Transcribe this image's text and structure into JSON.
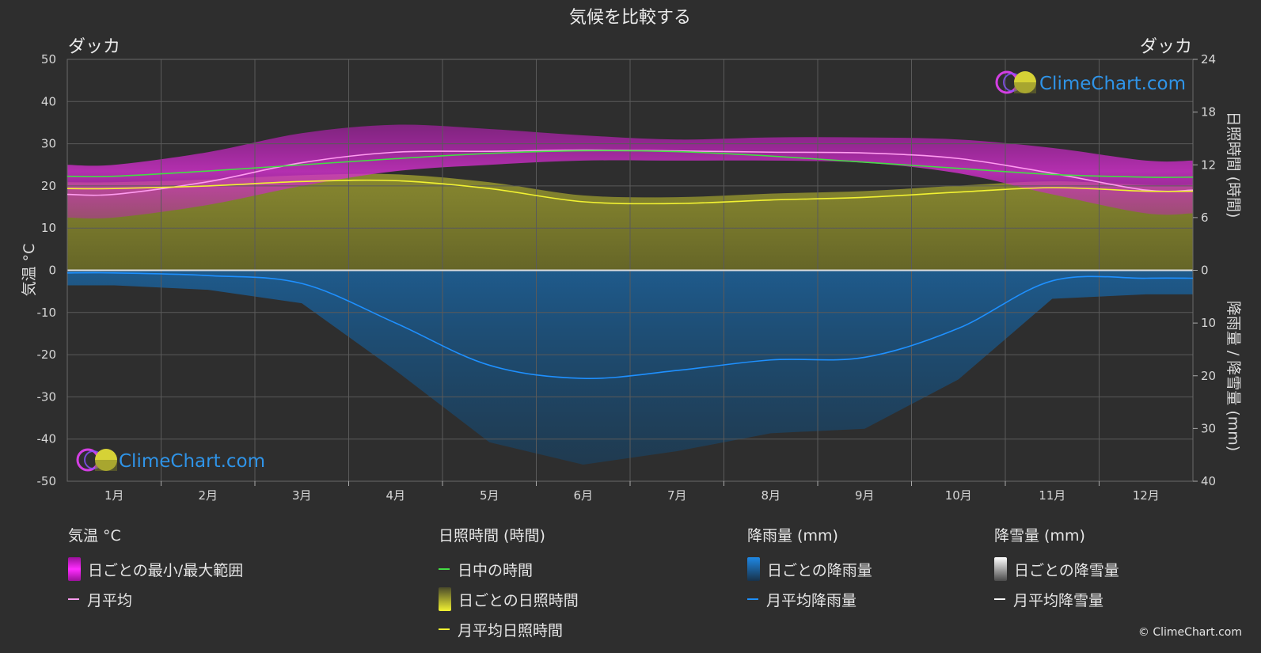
{
  "header": {
    "title": "気候を比較する",
    "city_left": "ダッカ",
    "city_right": "ダッカ"
  },
  "watermark": {
    "text": "ClimeChart.com"
  },
  "copyright": "© ClimeChart.com",
  "chart_data": {
    "type": "line",
    "x": [
      "1月",
      "2月",
      "3月",
      "4月",
      "5月",
      "6月",
      "7月",
      "8月",
      "9月",
      "10月",
      "11月",
      "12月"
    ],
    "left_axis": {
      "label": "気温 °C",
      "ylim": [
        -50,
        50
      ],
      "ticks": [
        50,
        40,
        30,
        20,
        10,
        0,
        -10,
        -20,
        -30,
        -40,
        -50
      ]
    },
    "right_axis_top": {
      "label": "日照時間 (時間)",
      "ylim": [
        0,
        24
      ],
      "ticks": [
        24,
        18,
        12,
        6,
        0
      ]
    },
    "right_axis_bottom": {
      "label": "降雨量 / 降雪量 (mm)",
      "ylim": [
        0,
        40
      ],
      "ticks": [
        0,
        10,
        20,
        30,
        40
      ]
    },
    "grid": true,
    "series": [
      {
        "name": "月平均",
        "axis": "temperature",
        "color": "#ff9cf0",
        "values": [
          18.0,
          21.0,
          25.5,
          28.0,
          28.2,
          28.5,
          28.3,
          28.0,
          27.8,
          26.5,
          23.0,
          19.0
        ]
      },
      {
        "name": "日中の時間",
        "axis": "sunshine",
        "color": "#44dd44",
        "values": [
          10.7,
          11.3,
          12.0,
          12.7,
          13.3,
          13.6,
          13.5,
          13.0,
          12.3,
          11.6,
          10.9,
          10.6
        ]
      },
      {
        "name": "月平均日照時間",
        "axis": "sunshine",
        "color": "#f2f232",
        "values": [
          9.3,
          9.6,
          10.1,
          10.2,
          9.3,
          7.8,
          7.6,
          8.0,
          8.3,
          8.9,
          9.4,
          9.0
        ]
      },
      {
        "name": "月平均降雨量",
        "axis": "precipitation",
        "color": "#1e90ff",
        "values": [
          0.5,
          1.0,
          2.5,
          10.0,
          18.0,
          20.5,
          19.0,
          17.0,
          16.5,
          11.0,
          2.0,
          1.5
        ]
      }
    ],
    "bands": {
      "temperature_min": [
        12.5,
        15.5,
        20.0,
        23.5,
        25.0,
        26.0,
        26.0,
        26.0,
        25.5,
        23.0,
        18.0,
        13.5
      ],
      "temperature_max": [
        25.0,
        28.0,
        32.5,
        34.5,
        33.5,
        32.0,
        31.0,
        31.5,
        31.5,
        31.0,
        29.0,
        26.0
      ]
    }
  },
  "legend": {
    "groups": [
      {
        "head": "気温 °C",
        "items": [
          {
            "label": "日ごとの最小/最大範囲",
            "swatch": "box",
            "color": "#d40fd0"
          },
          {
            "label": "月平均",
            "swatch": "line",
            "color": "#ff9cf0"
          }
        ]
      },
      {
        "head": "日照時間 (時間)",
        "items": [
          {
            "label": "日中の時間",
            "swatch": "line",
            "color": "#44dd44"
          },
          {
            "label": "日ごとの日照時間",
            "swatch": "box",
            "color": "#c8c83a"
          },
          {
            "label": "月平均日照時間",
            "swatch": "line",
            "color": "#f2f232"
          }
        ]
      },
      {
        "head": "降雨量 (mm)",
        "items": [
          {
            "label": "日ごとの降雨量",
            "swatch": "box",
            "color": "#1e7bd0"
          },
          {
            "label": "月平均降雨量",
            "swatch": "line",
            "color": "#1e90ff"
          }
        ]
      },
      {
        "head": "降雪量 (mm)",
        "items": [
          {
            "label": "日ごとの降雪量",
            "swatch": "box",
            "color": "#d0d0d0"
          },
          {
            "label": "月平均降雪量",
            "swatch": "line",
            "color": "#ffffff"
          }
        ]
      }
    ]
  }
}
